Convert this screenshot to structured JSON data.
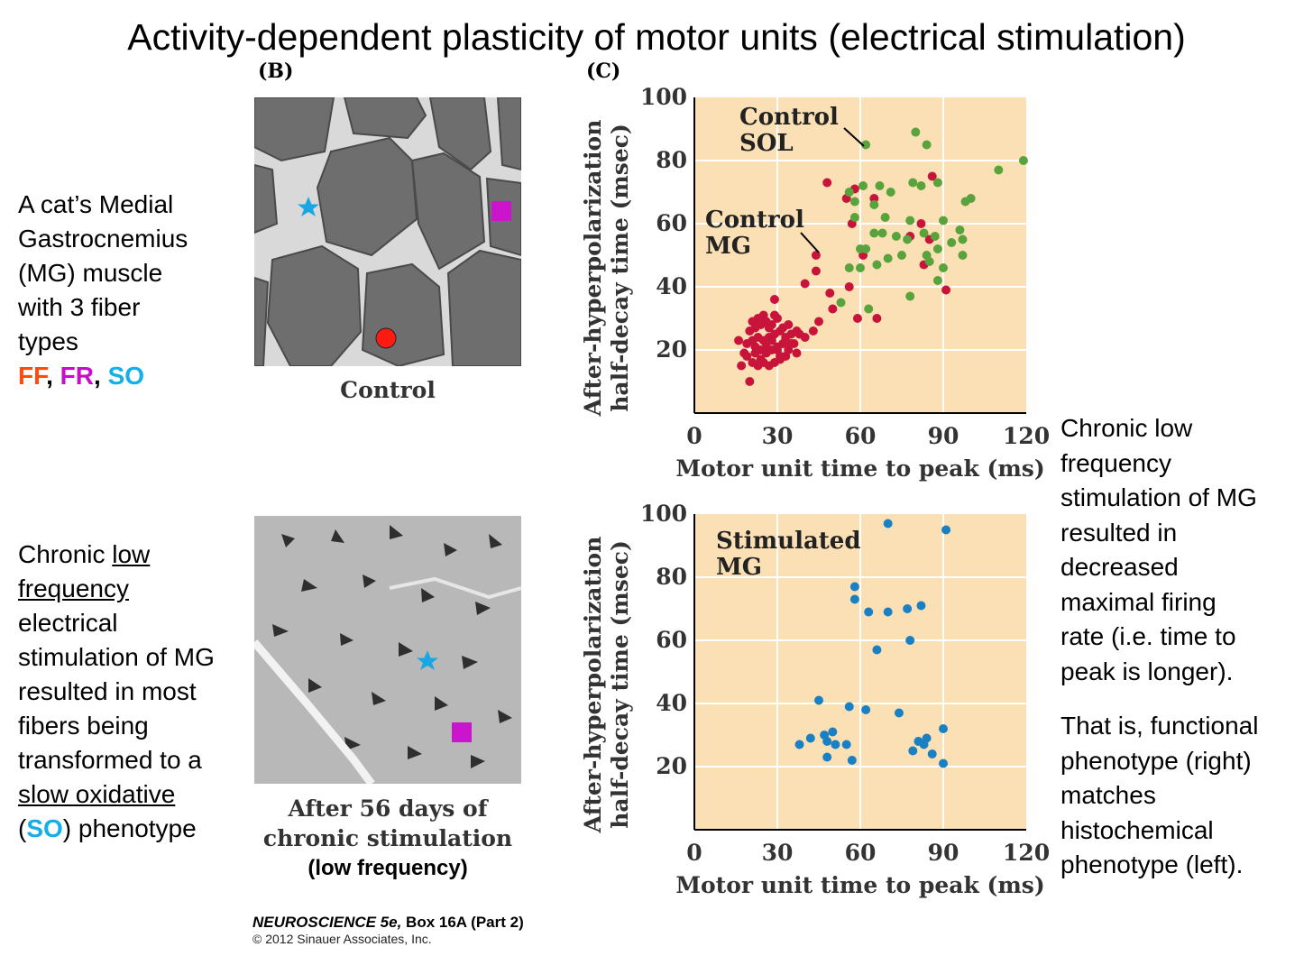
{
  "title": "Activity-dependent plasticity of motor units (electrical stimulation)",
  "panel_b_label": "(B)",
  "panel_c_label": "(C)",
  "left_top": {
    "lines": [
      "A cat’s Medial",
      "Gastrocnemius",
      "(MG) muscle",
      "with 3 fiber",
      "types"
    ],
    "ff": "FF",
    "sep1": ", ",
    "fr": "FR",
    "sep2": ", ",
    "so": "SO"
  },
  "left_bottom": {
    "l1a": "Chronic ",
    "l1b": "low",
    "l2": "frequency",
    "l3": "electrical",
    "l4": "stimulation of MG",
    "l5": "resulted in most",
    "l6": "fibers being",
    "l7": "transformed to a",
    "l8": "slow oxidative",
    "l9a": "(",
    "l9b": "SO",
    "l9c": ") phenotype"
  },
  "micrograph_top_caption": "Control",
  "micrograph_bottom_caption": [
    "After 56 days of",
    "chronic stimulation"
  ],
  "micrograph_bottom_paren": {
    "open": "(",
    "bold": "low frequency",
    "close": ")"
  },
  "right_text": {
    "p1": [
      "Chronic low",
      "frequency",
      "stimulation of MG",
      "resulted in",
      "decreased",
      "maximal firing",
      "rate (i.e. time to",
      "peak is longer)."
    ],
    "p2": [
      "That is, functional",
      "phenotype (right)",
      "matches",
      "histochemical",
      "phenotype (left)."
    ]
  },
  "credit": {
    "title": "NEUROSCIENCE 5e,",
    "part": " Box 16A (Part 2)",
    "copyright": "© 2012 Sinauer Associates, Inc."
  },
  "markers": {
    "star": "#18a7e3",
    "square": "#cc14cc",
    "circle": "#ff1a12"
  },
  "chart_data": [
    {
      "type": "scatter",
      "xlabel": "Motor unit time to peak (ms)",
      "ylabel": [
        "After-hyperpolarization",
        "half-decay time (msec)"
      ],
      "xlim": [
        0,
        120
      ],
      "ylim": [
        0,
        100
      ],
      "xticks": [
        0,
        30,
        60,
        90,
        120
      ],
      "yticks": [
        20,
        40,
        60,
        80,
        100
      ],
      "grid": true,
      "background": "#fbe0b6",
      "annotations": [
        {
          "lines": [
            "Control",
            "SOL"
          ]
        },
        {
          "lines": [
            "Control",
            "MG"
          ]
        }
      ],
      "series": [
        {
          "color": "#c8143a",
          "points": [
            [
              20,
              10
            ],
            [
              17,
              15
            ],
            [
              19,
              18
            ],
            [
              21,
              16
            ],
            [
              23,
              15
            ],
            [
              25,
              16
            ],
            [
              27,
              15
            ],
            [
              29,
              16
            ],
            [
              31,
              17
            ],
            [
              33,
              18
            ],
            [
              22,
              19
            ],
            [
              24,
              20
            ],
            [
              26,
              19
            ],
            [
              28,
              20
            ],
            [
              30,
              21
            ],
            [
              32,
              22
            ],
            [
              34,
              20
            ],
            [
              36,
              22
            ],
            [
              19,
              22
            ],
            [
              21,
              23
            ],
            [
              23,
              24
            ],
            [
              25,
              23
            ],
            [
              27,
              24
            ],
            [
              29,
              25
            ],
            [
              31,
              26
            ],
            [
              33,
              24
            ],
            [
              35,
              25
            ],
            [
              37,
              26
            ],
            [
              22,
              27
            ],
            [
              24,
              28
            ],
            [
              26,
              29
            ],
            [
              28,
              28
            ],
            [
              30,
              30
            ],
            [
              16,
              23
            ],
            [
              18,
              19
            ],
            [
              20,
              26
            ],
            [
              26,
              21
            ],
            [
              28,
              23
            ],
            [
              32,
              27
            ],
            [
              34,
              28
            ],
            [
              38,
              25
            ],
            [
              40,
              24
            ],
            [
              43,
              26
            ],
            [
              45,
              29
            ],
            [
              23,
              30
            ],
            [
              25,
              31
            ],
            [
              27,
              27
            ],
            [
              29,
              31
            ],
            [
              31,
              18
            ],
            [
              24,
              17
            ],
            [
              22,
              21
            ],
            [
              35,
              22
            ],
            [
              37,
              19
            ],
            [
              21,
              29
            ],
            [
              30,
              20
            ],
            [
              29,
              36
            ],
            [
              40,
              41
            ],
            [
              44,
              45
            ],
            [
              44,
              50
            ],
            [
              49,
              38
            ],
            [
              50,
              33
            ],
            [
              56,
              40
            ],
            [
              59,
              30
            ],
            [
              66,
              30
            ],
            [
              61,
              50
            ],
            [
              57,
              60
            ],
            [
              65,
              68
            ],
            [
              48,
              73
            ],
            [
              58,
              71
            ],
            [
              55,
              68
            ],
            [
              78,
              56
            ],
            [
              82,
              60
            ],
            [
              85,
              55
            ],
            [
              83,
              47
            ],
            [
              86,
              75
            ],
            [
              91,
              39
            ]
          ]
        },
        {
          "color": "#59a33c",
          "points": [
            [
              62,
              85
            ],
            [
              80,
              89
            ],
            [
              84,
              85
            ],
            [
              56,
              70
            ],
            [
              61,
              72
            ],
            [
              67,
              72
            ],
            [
              71,
              70
            ],
            [
              79,
              73
            ],
            [
              88,
              73
            ],
            [
              58,
              67
            ],
            [
              65,
              66
            ],
            [
              82,
              72
            ],
            [
              58,
              62
            ],
            [
              69,
              62
            ],
            [
              78,
              61
            ],
            [
              90,
              61
            ],
            [
              65,
              57
            ],
            [
              68,
              57
            ],
            [
              73,
              56
            ],
            [
              77,
              55
            ],
            [
              83,
              57
            ],
            [
              87,
              56
            ],
            [
              93,
              54
            ],
            [
              60,
              52
            ],
            [
              62,
              52
            ],
            [
              70,
              49
            ],
            [
              75,
              50
            ],
            [
              84,
              50
            ],
            [
              85,
              48
            ],
            [
              88,
              52
            ],
            [
              90,
              46
            ],
            [
              88,
              42
            ],
            [
              97,
              50
            ],
            [
              96,
              58
            ],
            [
              97,
              55
            ],
            [
              98,
              67
            ],
            [
              100,
              68
            ],
            [
              110,
              77
            ],
            [
              119,
              80
            ],
            [
              53,
              35
            ],
            [
              63,
              33
            ],
            [
              78,
              37
            ],
            [
              60,
              46
            ],
            [
              56,
              46
            ],
            [
              66,
              47
            ]
          ]
        }
      ]
    },
    {
      "type": "scatter",
      "xlabel": "Motor unit time to peak (ms)",
      "ylabel": [
        "After-hyperpolarization",
        "half-decay time (msec)"
      ],
      "xlim": [
        0,
        120
      ],
      "ylim": [
        0,
        100
      ],
      "xticks": [
        0,
        30,
        60,
        90,
        120
      ],
      "yticks": [
        20,
        40,
        60,
        80,
        100
      ],
      "grid": true,
      "background": "#fbe0b6",
      "annotations": [
        {
          "lines": [
            "Stimulated",
            "MG"
          ]
        }
      ],
      "series": [
        {
          "color": "#1a80c4",
          "points": [
            [
              70,
              97
            ],
            [
              91,
              95
            ],
            [
              58,
              77
            ],
            [
              58,
              73
            ],
            [
              63,
              69
            ],
            [
              70,
              69
            ],
            [
              77,
              70
            ],
            [
              82,
              71
            ],
            [
              66,
              57
            ],
            [
              78,
              60
            ],
            [
              45,
              41
            ],
            [
              56,
              39
            ],
            [
              62,
              38
            ],
            [
              74,
              37
            ],
            [
              38,
              27
            ],
            [
              42,
              29
            ],
            [
              47,
              30
            ],
            [
              48,
              28
            ],
            [
              50,
              31
            ],
            [
              51,
              27
            ],
            [
              55,
              27
            ],
            [
              48,
              23
            ],
            [
              57,
              22
            ],
            [
              79,
              25
            ],
            [
              81,
              28
            ],
            [
              84,
              29
            ],
            [
              83,
              27
            ],
            [
              86,
              24
            ],
            [
              90,
              32
            ],
            [
              90,
              21
            ]
          ]
        }
      ]
    }
  ]
}
